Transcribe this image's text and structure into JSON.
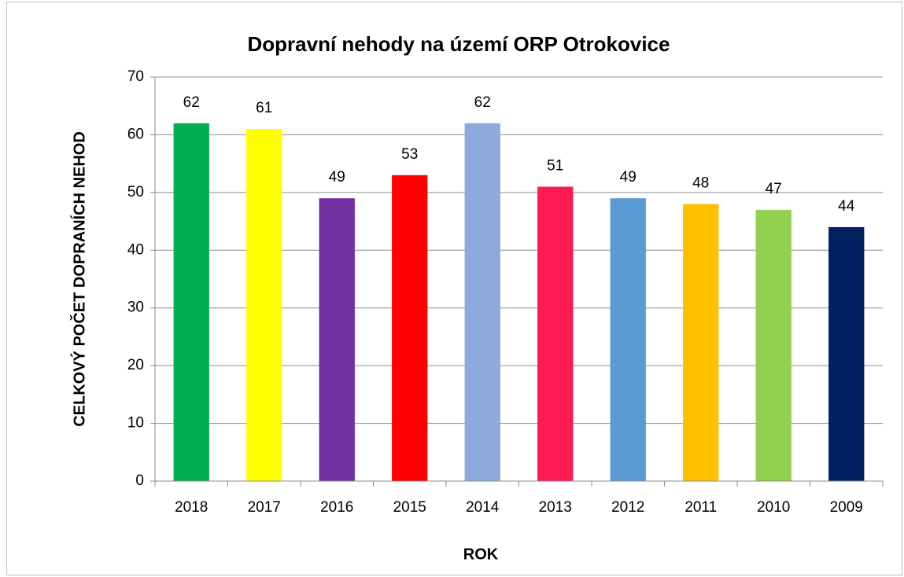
{
  "chart_data": {
    "type": "bar",
    "title": "Dopravní nehody na území ORP Otrokovice",
    "x_label": "ROK",
    "y_label": "CELKOVÝ POČET DOPRANÍCH NEHOD",
    "categories": [
      "2018",
      "2017",
      "2016",
      "2015",
      "2014",
      "2013",
      "2012",
      "2011",
      "2010",
      "2009"
    ],
    "values": [
      62,
      61,
      49,
      53,
      62,
      51,
      49,
      48,
      47,
      44
    ],
    "colors": [
      "#00b050",
      "#ffff00",
      "#7030a0",
      "#ff0000",
      "#8eaadb",
      "#ff1a52",
      "#5b9bd5",
      "#ffc000",
      "#92d050",
      "#002060"
    ],
    "ylim": [
      0,
      70
    ],
    "yticks": [
      0,
      10,
      20,
      30,
      40,
      50,
      60,
      70
    ],
    "grid": true
  }
}
